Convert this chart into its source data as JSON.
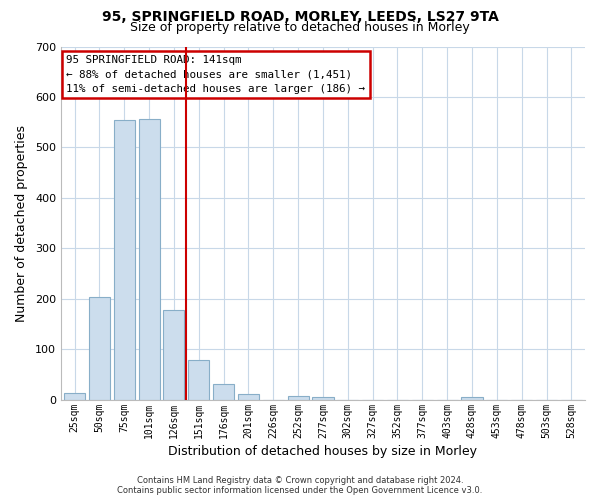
{
  "title": "95, SPRINGFIELD ROAD, MORLEY, LEEDS, LS27 9TA",
  "subtitle": "Size of property relative to detached houses in Morley",
  "xlabel": "Distribution of detached houses by size in Morley",
  "ylabel": "Number of detached properties",
  "bar_labels": [
    "25sqm",
    "50sqm",
    "75sqm",
    "101sqm",
    "126sqm",
    "151sqm",
    "176sqm",
    "201sqm",
    "226sqm",
    "252sqm",
    "277sqm",
    "302sqm",
    "327sqm",
    "352sqm",
    "377sqm",
    "403sqm",
    "428sqm",
    "453sqm",
    "478sqm",
    "503sqm",
    "528sqm"
  ],
  "bar_values": [
    12,
    203,
    554,
    557,
    178,
    78,
    30,
    10,
    0,
    7,
    5,
    0,
    0,
    0,
    0,
    0,
    5,
    0,
    0,
    0,
    0
  ],
  "bar_color": "#ccdded",
  "bar_edge_color": "#88aec8",
  "vline_x_idx": 4.5,
  "vline_color": "#cc0000",
  "ylim": [
    0,
    700
  ],
  "yticks": [
    0,
    100,
    200,
    300,
    400,
    500,
    600,
    700
  ],
  "annotation_title": "95 SPRINGFIELD ROAD: 141sqm",
  "annotation_line1": "← 88% of detached houses are smaller (1,451)",
  "annotation_line2": "11% of semi-detached houses are larger (186) →",
  "footer_line1": "Contains HM Land Registry data © Crown copyright and database right 2024.",
  "footer_line2": "Contains public sector information licensed under the Open Government Licence v3.0.",
  "background_color": "#ffffff",
  "grid_color": "#c8d8e8"
}
